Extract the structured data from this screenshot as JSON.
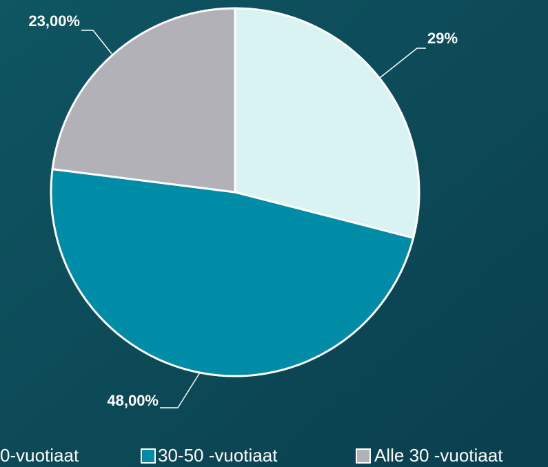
{
  "chart_data": {
    "type": "pie",
    "categories": [
      "0-vuotiaat",
      "30-50 -vuotiaat",
      "Alle 30 -vuotiaat"
    ],
    "values": [
      29,
      48,
      23
    ],
    "value_labels": [
      "29%",
      "48,00%",
      "23,00%"
    ],
    "colors": [
      "#d9f2f2",
      "#008ca6",
      "#b3b1b8"
    ],
    "legend": "bottom"
  }
}
